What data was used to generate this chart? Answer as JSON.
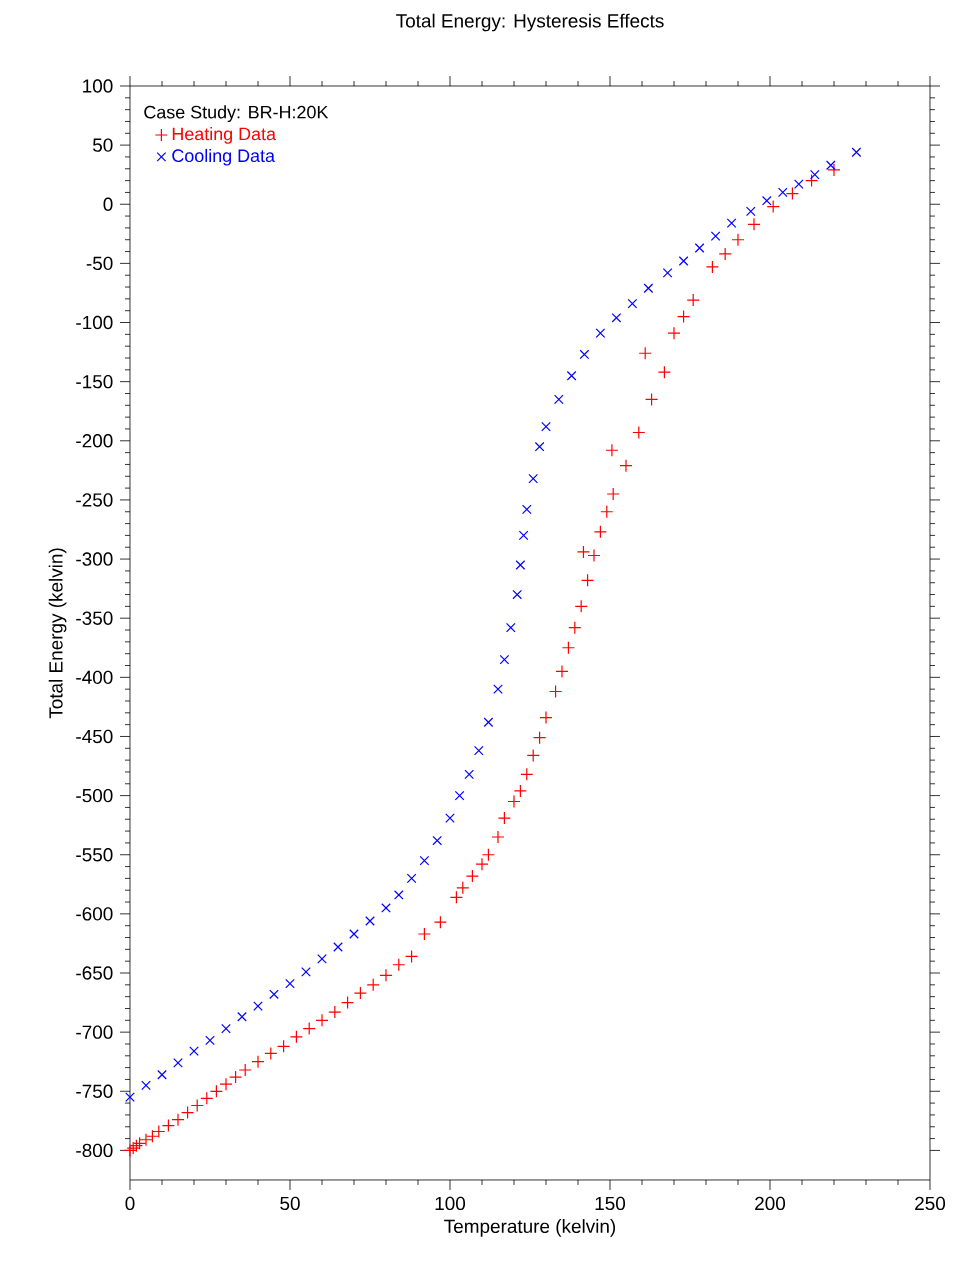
{
  "chart_data": {
    "type": "scatter",
    "title": "Total Energy: Hysteresis Effects",
    "xlabel": "Temperature (kelvin)",
    "ylabel": "Total Energy (kelvin)",
    "legend_title": "Case Study: BR-H:20K",
    "legend": "top left",
    "grid": false,
    "xlim": [
      0,
      250
    ],
    "xticks": [
      0,
      50,
      100,
      150,
      200,
      250
    ],
    "ylim": [
      -825,
      100
    ],
    "yticks": [
      -800,
      -750,
      -700,
      -650,
      -600,
      -550,
      -500,
      -450,
      -400,
      -350,
      -300,
      -250,
      -200,
      -150,
      -100,
      -50,
      0,
      50,
      100
    ],
    "series": [
      {
        "name": "Heating Data",
        "color": "#ff0000",
        "marker": "plus",
        "x": [
          0,
          1,
          2,
          3,
          5,
          7,
          9,
          12,
          15,
          18,
          21,
          24,
          27,
          30,
          33,
          36,
          40,
          44,
          48,
          52,
          56,
          60,
          64,
          68,
          72,
          76,
          80,
          84,
          88,
          92,
          97,
          102,
          104,
          107,
          110,
          112,
          115,
          117,
          120,
          122,
          124,
          126,
          128,
          130,
          133,
          135,
          137,
          139,
          141,
          143,
          145,
          147,
          149,
          151,
          155,
          159,
          163,
          167,
          170,
          173,
          176,
          182,
          186,
          190,
          195,
          201,
          207,
          213,
          220,
          141.7,
          150.6,
          161
        ],
        "values": [
          -800,
          -798,
          -796,
          -794,
          -791,
          -788,
          -784,
          -779,
          -774,
          -768,
          -762,
          -756,
          -750,
          -744,
          -738,
          -732,
          -725,
          -718,
          -712,
          -704,
          -697,
          -690,
          -683,
          -675,
          -667,
          -660,
          -652,
          -643,
          -636,
          -617,
          -607,
          -586,
          -578,
          -568,
          -558,
          -550,
          -535,
          -519,
          -505,
          -496,
          -482,
          -466,
          -451,
          -434,
          -412,
          -395,
          -375,
          -358,
          -340,
          -318,
          -297,
          -277,
          -260,
          -245,
          -221,
          -193,
          -165,
          -142,
          -109,
          -95,
          -81,
          -53,
          -42,
          -30,
          -17,
          -2,
          9,
          20,
          29,
          -294,
          -208,
          -126
        ]
      },
      {
        "name": "Cooling Data",
        "color": "#0000ff",
        "marker": "cross",
        "x": [
          0,
          5,
          10,
          15,
          20,
          25,
          30,
          35,
          40,
          45,
          50,
          55,
          60,
          65,
          70,
          75,
          80,
          84,
          88,
          92,
          96,
          100,
          103,
          106,
          109,
          112,
          115,
          117,
          119,
          121,
          122,
          123,
          124,
          126,
          128,
          130,
          134,
          138,
          142,
          147,
          152,
          157,
          162,
          168,
          173,
          178,
          183,
          188,
          194,
          199,
          204,
          209,
          214,
          219,
          227
        ],
        "values": [
          -755,
          -745,
          -736,
          -726,
          -716,
          -707,
          -697,
          -687,
          -678,
          -668,
          -659,
          -649,
          -638,
          -628,
          -617,
          -606,
          -595,
          -584,
          -570,
          -555,
          -538,
          -519,
          -500,
          -482,
          -462,
          -438,
          -410,
          -385,
          -358,
          -330,
          -305,
          -280,
          -258,
          -232,
          -205,
          -188,
          -165,
          -145,
          -127,
          -109,
          -96,
          -84,
          -71,
          -58,
          -48,
          -37,
          -27,
          -16,
          -6,
          3,
          10,
          17,
          25,
          33,
          44
        ]
      }
    ]
  }
}
